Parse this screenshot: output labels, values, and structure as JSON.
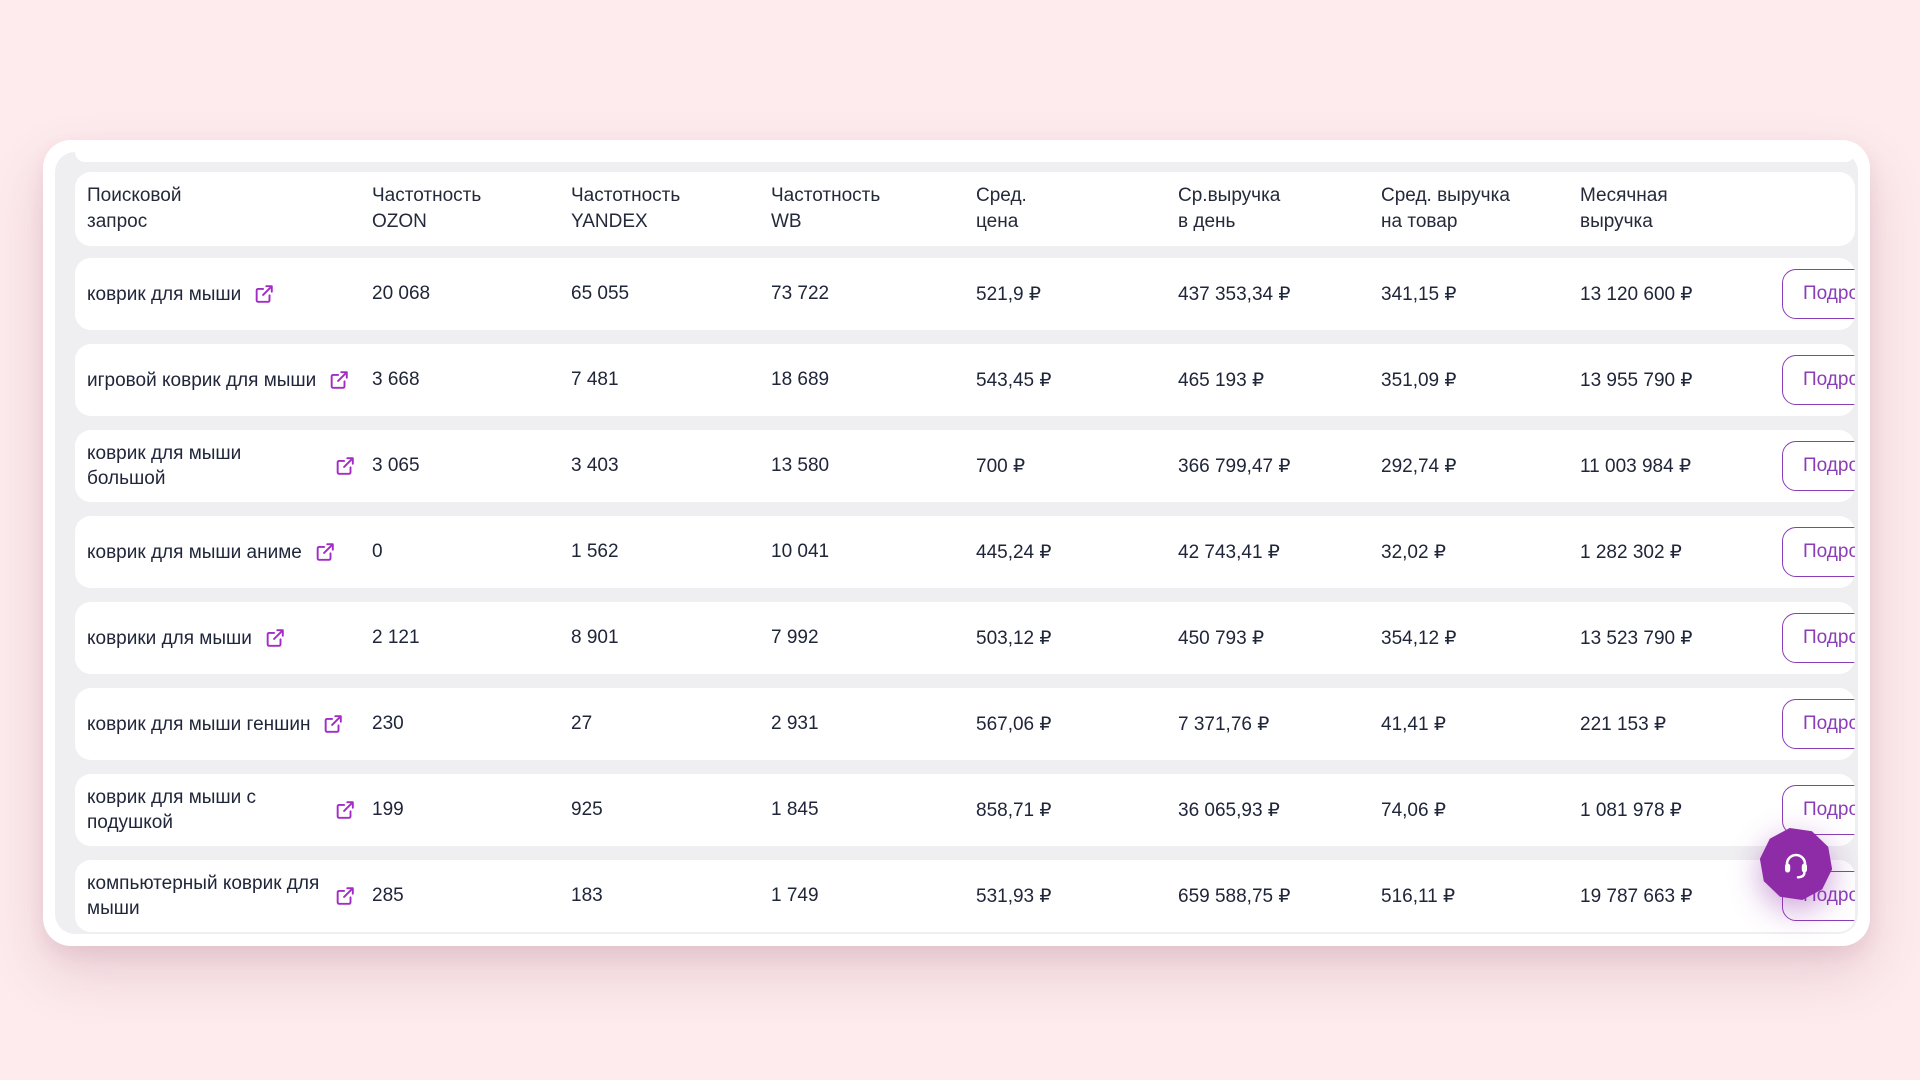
{
  "colors": {
    "background_pink": "#fdebed",
    "panel_gray": "#efeff1",
    "row_white": "#ffffff",
    "text_dark": "#20263a",
    "accent_purple": "#8b3db8",
    "link_icon_purple": "#a32cc8",
    "fab_purple": "#8e2ba6"
  },
  "table": {
    "details_label": "Подроб",
    "headers": [
      {
        "line1": "Поисковой",
        "line2": "запрос"
      },
      {
        "line1": "Частотность",
        "line2": "OZON"
      },
      {
        "line1": "Частотность",
        "line2": "YANDEX"
      },
      {
        "line1": "Частотность",
        "line2": "WB"
      },
      {
        "line1": "Сред.",
        "line2": "цена"
      },
      {
        "line1": "Ср.выручка",
        "line2": "в день"
      },
      {
        "line1": "Сред. выручка",
        "line2": "на товар"
      },
      {
        "line1": "Месячная",
        "line2": "выручка"
      }
    ],
    "rows": [
      {
        "query": "коврик для мыши",
        "ozon": "20 068",
        "yandex": "65 055",
        "wb": "73 722",
        "price": "521,9 ₽",
        "rev_day": "437 353,34 ₽",
        "rev_item": "341,15 ₽",
        "monthly": "13 120 600 ₽"
      },
      {
        "query": "игровой коврик для мыши",
        "ozon": "3 668",
        "yandex": "7 481",
        "wb": "18 689",
        "price": "543,45 ₽",
        "rev_day": "465 193 ₽",
        "rev_item": "351,09 ₽",
        "monthly": "13 955 790 ₽"
      },
      {
        "query": "коврик для мыши большой",
        "ozon": "3 065",
        "yandex": "3 403",
        "wb": "13 580",
        "price": "700 ₽",
        "rev_day": "366 799,47 ₽",
        "rev_item": "292,74 ₽",
        "monthly": "11 003 984 ₽"
      },
      {
        "query": "коврик для мыши аниме",
        "ozon": "0",
        "yandex": "1 562",
        "wb": "10 041",
        "price": "445,24 ₽",
        "rev_day": "42 743,41 ₽",
        "rev_item": "32,02 ₽",
        "monthly": "1 282 302 ₽"
      },
      {
        "query": "коврики для мыши",
        "ozon": "2 121",
        "yandex": "8 901",
        "wb": "7 992",
        "price": "503,12 ₽",
        "rev_day": "450 793 ₽",
        "rev_item": "354,12 ₽",
        "monthly": "13 523 790 ₽"
      },
      {
        "query": "коврик для мыши геншин",
        "ozon": "230",
        "yandex": "27",
        "wb": "2 931",
        "price": "567,06 ₽",
        "rev_day": "7 371,76 ₽",
        "rev_item": "41,41 ₽",
        "monthly": "221 153 ₽"
      },
      {
        "query": "коврик для мыши с подушкой",
        "ozon": "199",
        "yandex": "925",
        "wb": "1 845",
        "price": "858,71 ₽",
        "rev_day": "36 065,93 ₽",
        "rev_item": "74,06 ₽",
        "monthly": "1 081 978 ₽"
      },
      {
        "query": "компьютерный коврик для мыши",
        "ozon": "285",
        "yandex": "183",
        "wb": "1 749",
        "price": "531,93 ₽",
        "rev_day": "659 588,75 ₽",
        "rev_item": "516,11 ₽",
        "monthly": "19 787 663 ₽"
      }
    ]
  },
  "fab": {
    "icon": "headset-icon"
  }
}
